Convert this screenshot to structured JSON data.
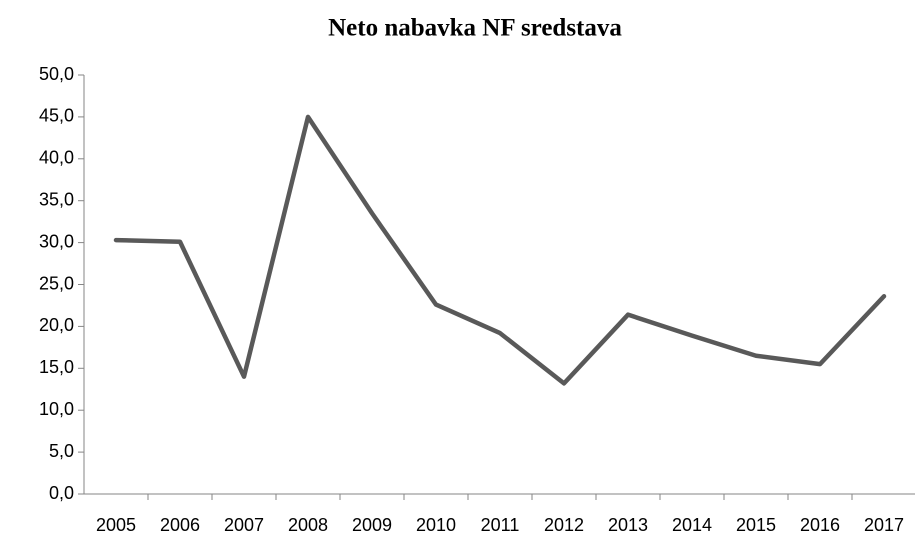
{
  "chart_data": {
    "type": "line",
    "title": "Neto nabavka NF sredstava",
    "categories": [
      "2005",
      "2006",
      "2007",
      "2008",
      "2009",
      "2010",
      "2011",
      "2012",
      "2013",
      "2014",
      "2015",
      "2016",
      "2017"
    ],
    "values": [
      30.3,
      30.1,
      14.0,
      45.0,
      33.5,
      22.6,
      19.2,
      13.2,
      21.4,
      18.9,
      16.5,
      15.5,
      23.6
    ],
    "color": "#595959",
    "ylim": [
      0,
      50
    ],
    "yticks": [
      {
        "value": 0,
        "label": "0,0"
      },
      {
        "value": 5,
        "label": "5,0"
      },
      {
        "value": 10,
        "label": "10,0"
      },
      {
        "value": 15,
        "label": "15,0"
      },
      {
        "value": 20,
        "label": "20,0"
      },
      {
        "value": 25,
        "label": "25,0"
      },
      {
        "value": 30,
        "label": "30,0"
      },
      {
        "value": 35,
        "label": "35,0"
      },
      {
        "value": 40,
        "label": "40,0"
      },
      {
        "value": 45,
        "label": "45,0"
      },
      {
        "value": 50,
        "label": "50,0"
      }
    ],
    "grid": false
  }
}
